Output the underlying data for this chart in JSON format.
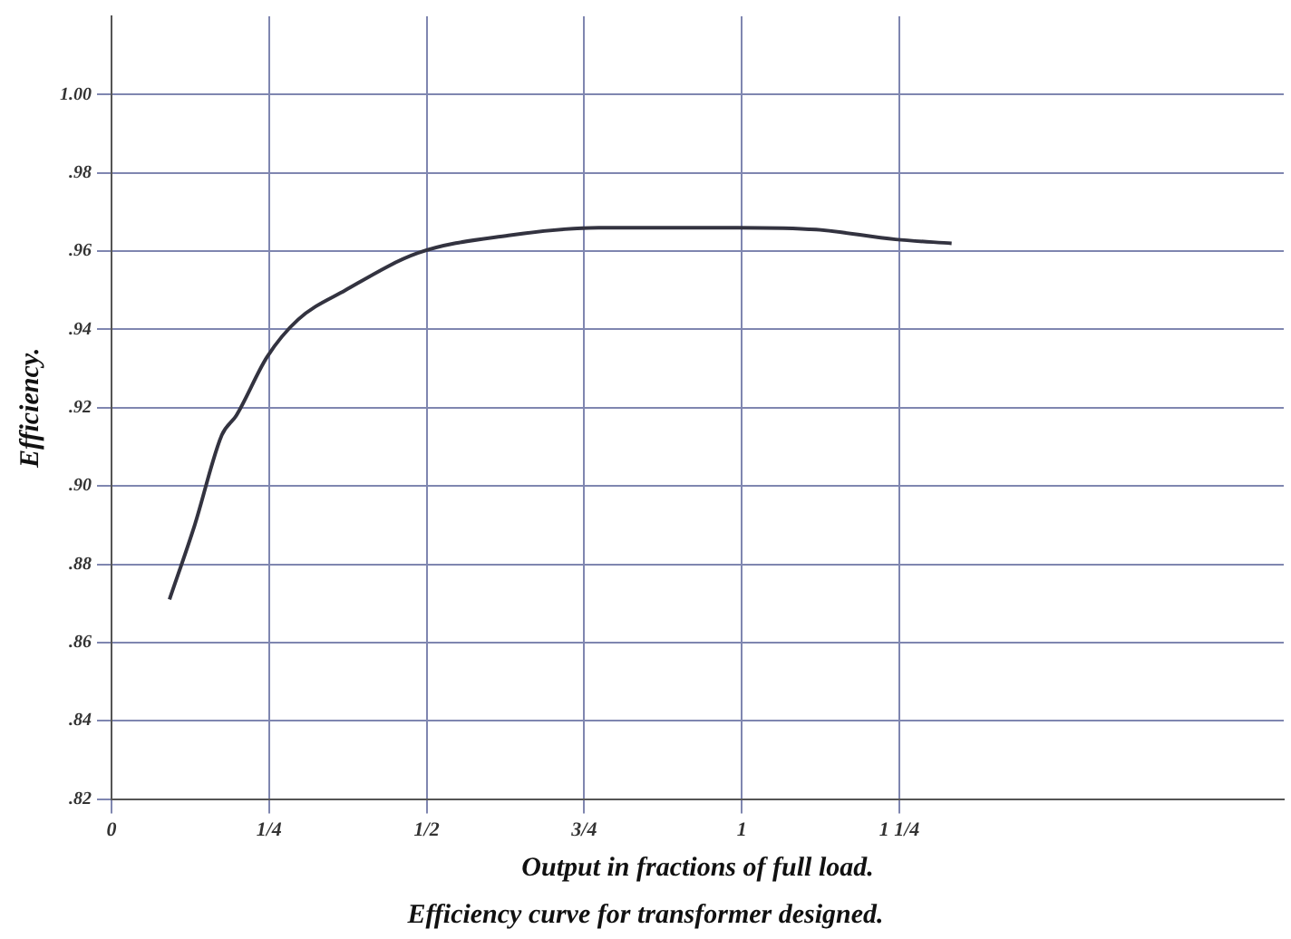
{
  "chart_data": {
    "type": "line",
    "title": "Efficiency curve for transformer designed.",
    "xlabel": "Output in fractions of full load.",
    "ylabel": "Efficiency.",
    "x": [
      0.092,
      0.132,
      0.175,
      0.198,
      0.247,
      0.296,
      0.371,
      0.486,
      0.63,
      0.773,
      0.994,
      1.118,
      1.244,
      1.333
    ],
    "series": [
      {
        "color": "#333340",
        "values": [
          0.871,
          0.89,
          0.913,
          0.918,
          0.933,
          0.9425,
          0.95,
          0.9595,
          0.964,
          0.966,
          0.966,
          0.9655,
          0.963,
          0.962
        ]
      }
    ],
    "xlim": [
      0,
      1.86
    ],
    "ylim": [
      0.82,
      1.02
    ],
    "xticks": [
      0,
      {
        "value": 0.25,
        "label": "1/4"
      },
      {
        "value": 0.5,
        "label": "1/2"
      },
      {
        "value": 0.75,
        "label": "3/4"
      },
      1,
      {
        "value": 1.25,
        "label": "1 1/4"
      }
    ],
    "yticks": [
      {
        "value": 0.82,
        "label": ".82"
      },
      {
        "value": 0.84,
        "label": ".84"
      },
      {
        "value": 0.86,
        "label": ".86"
      },
      {
        "value": 0.88,
        "label": ".88"
      },
      {
        "value": 0.9,
        "label": ".90"
      },
      {
        "value": 0.92,
        "label": ".92"
      },
      {
        "value": 0.94,
        "label": ".94"
      },
      {
        "value": 0.96,
        "label": ".96"
      },
      {
        "value": 0.98,
        "label": ".98"
      },
      {
        "value": 1,
        "label": "1.00"
      }
    ],
    "grid": true,
    "marker": "none",
    "line_style": "solid",
    "legend": false
  }
}
